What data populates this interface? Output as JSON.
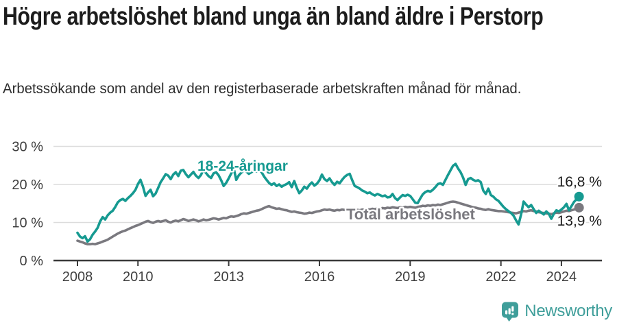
{
  "header": {
    "title": "Högre arbetslöshet bland unga än bland äldre i Perstorp",
    "subtitle": "Arbetssökande som andel av den registerbaserade arbetskraften månad för månad."
  },
  "chart_data": {
    "type": "line",
    "unit": "%",
    "x_start_year": 2008,
    "x_step_months": 1,
    "x_end_label": "2024",
    "xticks": [
      2008,
      2010,
      2013,
      2016,
      2019,
      2022,
      2024
    ],
    "xtick_labels": [
      "2008",
      "2010",
      "2013",
      "2016",
      "2019",
      "2022",
      "2024"
    ],
    "yticks": [
      0,
      10,
      20,
      30
    ],
    "ytick_labels": [
      "0 %",
      "10 %",
      "20 %",
      "30 %"
    ],
    "ylim": [
      0,
      32
    ],
    "grid": true,
    "legend_position": "inline-labels",
    "series": [
      {
        "name": "Total arbetslöshet",
        "color": "#7a797f",
        "end_value": 13.9,
        "end_label": "13,9 %",
        "values": [
          5.2,
          5.0,
          4.8,
          4.5,
          4.3,
          4.3,
          4.4,
          4.3,
          4.5,
          4.7,
          5.0,
          5.2,
          5.5,
          5.9,
          6.3,
          6.7,
          7.1,
          7.4,
          7.7,
          7.9,
          8.2,
          8.5,
          8.8,
          9.1,
          9.3,
          9.6,
          9.9,
          10.2,
          10.4,
          10.1,
          9.9,
          10.2,
          10.4,
          10.2,
          10.4,
          10.6,
          10.2,
          10.0,
          10.3,
          10.5,
          10.3,
          10.6,
          10.9,
          10.7,
          10.4,
          10.6,
          10.8,
          10.6,
          10.3,
          10.5,
          10.8,
          10.6,
          10.7,
          10.9,
          11.1,
          11.0,
          10.8,
          11.0,
          11.2,
          11.1,
          11.4,
          11.6,
          11.5,
          11.7,
          11.9,
          12.2,
          12.4,
          12.3,
          12.5,
          12.7,
          12.9,
          13.1,
          13.2,
          13.5,
          13.8,
          14.1,
          14.3,
          14.0,
          13.8,
          13.6,
          13.7,
          13.5,
          13.3,
          13.2,
          13.0,
          12.8,
          12.9,
          12.7,
          12.6,
          12.5,
          12.3,
          12.4,
          12.6,
          12.5,
          12.7,
          12.9,
          13.0,
          13.2,
          13.4,
          13.3,
          13.4,
          13.2,
          13.1,
          13.3,
          13.2,
          13.4,
          13.3,
          13.2,
          13.1,
          13.0,
          13.2,
          13.3,
          13.2,
          13.4,
          13.3,
          13.5,
          13.4,
          13.6,
          13.5,
          13.7,
          13.6,
          13.8,
          13.7,
          13.9,
          13.8,
          14.0,
          13.9,
          13.8,
          14.0,
          13.9,
          14.1,
          14.0,
          14.1,
          14.0,
          13.9,
          14.1,
          14.2,
          14.4,
          14.3,
          14.5,
          14.4,
          14.6,
          14.5,
          14.7,
          14.6,
          14.8,
          15.0,
          15.2,
          15.4,
          15.5,
          15.4,
          15.2,
          15.0,
          14.8,
          14.6,
          14.4,
          14.2,
          14.0,
          13.9,
          13.7,
          13.6,
          13.4,
          13.3,
          13.5,
          13.3,
          13.2,
          13.1,
          13.0,
          13.0,
          12.9,
          12.8,
          12.7,
          12.6,
          12.5,
          12.4,
          12.6,
          12.8,
          13.0,
          12.9,
          13.1,
          13.2,
          13.0,
          12.9,
          12.7,
          12.6,
          12.5,
          12.4,
          12.3,
          12.2,
          12.4,
          12.6,
          12.5,
          12.7,
          12.9,
          13.1,
          13.0,
          13.2,
          13.4,
          13.6,
          13.9
        ]
      },
      {
        "name": "18-24-åringar",
        "color": "#169a91",
        "end_value": 16.8,
        "end_label": "16,8 %",
        "values": [
          7.3,
          6.3,
          5.9,
          6.4,
          5.0,
          5.6,
          6.8,
          7.6,
          8.6,
          10.3,
          11.4,
          10.8,
          11.9,
          12.6,
          13.1,
          14.1,
          15.3,
          15.9,
          16.2,
          15.7,
          16.4,
          17.0,
          17.7,
          18.6,
          20.1,
          21.2,
          19.4,
          17.0,
          17.9,
          18.6,
          16.9,
          17.6,
          19.1,
          20.6,
          21.6,
          22.7,
          22.3,
          21.4,
          22.6,
          23.2,
          22.2,
          23.6,
          23.8,
          22.7,
          21.9,
          22.6,
          23.3,
          22.3,
          21.7,
          22.5,
          23.9,
          23.0,
          22.2,
          21.7,
          22.9,
          23.2,
          22.4,
          21.1,
          19.6,
          20.4,
          21.6,
          22.9,
          24.2,
          21.2,
          22.4,
          23.1,
          23.7,
          23.4,
          22.8,
          23.2,
          23.6,
          23.4,
          23.6,
          23.3,
          22.1,
          21.2,
          20.4,
          19.9,
          20.3,
          19.6,
          20.0,
          19.4,
          19.8,
          20.1,
          20.6,
          19.3,
          20.9,
          19.1,
          17.7,
          18.4,
          19.4,
          18.9,
          19.9,
          20.5,
          19.7,
          20.2,
          21.1,
          22.6,
          21.4,
          20.9,
          21.6,
          20.6,
          19.9,
          20.7,
          20.3,
          21.2,
          22.0,
          22.5,
          22.8,
          21.1,
          19.6,
          19.3,
          18.9,
          18.4,
          18.1,
          17.7,
          17.9,
          17.4,
          17.1,
          17.5,
          17.2,
          16.9,
          17.1,
          16.6,
          16.7,
          17.5,
          16.4,
          15.9,
          16.6,
          17.2,
          17.0,
          17.3,
          17.0,
          16.1,
          15.2,
          15.1,
          16.3,
          17.4,
          18.0,
          18.3,
          18.1,
          18.6,
          19.3,
          20.1,
          20.3,
          19.9,
          21.2,
          22.5,
          23.7,
          24.9,
          25.4,
          24.2,
          23.2,
          21.8,
          19.9,
          21.4,
          21.7,
          21.2,
          20.9,
          21.1,
          20.6,
          18.4,
          17.5,
          18.9,
          17.2,
          16.8,
          16.1,
          15.7,
          14.9,
          14.1,
          13.5,
          13.0,
          12.5,
          11.8,
          10.6,
          9.5,
          12.1,
          15.5,
          14.7,
          14.0,
          14.6,
          13.5,
          12.5,
          13.1,
          12.6,
          12.1,
          12.9,
          12.3,
          11.0,
          12.3,
          13.2,
          12.9,
          13.4,
          14.0,
          14.9,
          13.2,
          14.3,
          15.4,
          16.1,
          16.8
        ]
      }
    ]
  },
  "footer": {
    "brand": "Newsworthy"
  },
  "colors": {
    "teal": "#169a91",
    "gray": "#7a797f",
    "grid": "#dcdcdc",
    "axis": "#3a3a3a",
    "tick_text": "#3f3f3f",
    "annotation_text": "#1d1d1d",
    "brand": "#3f9e9a"
  }
}
